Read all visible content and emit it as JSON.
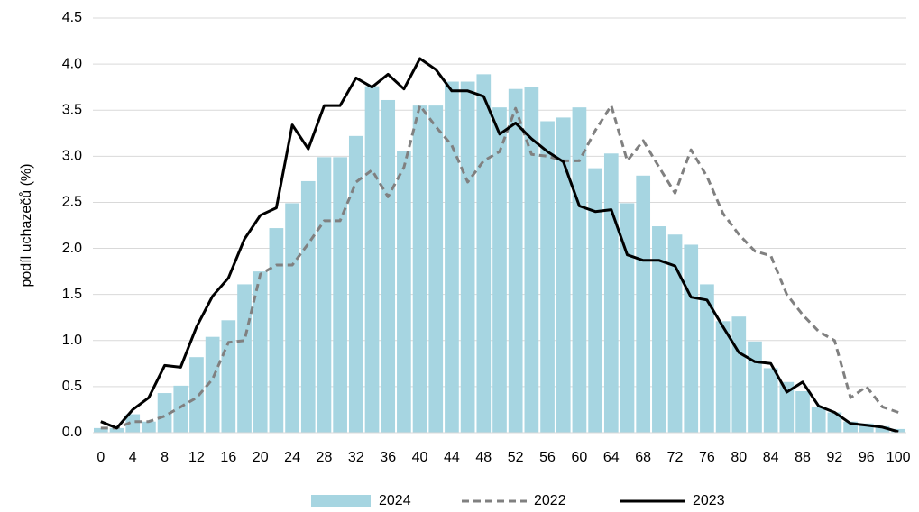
{
  "chart_data": {
    "type": "bar",
    "y_label": "podíl uchazečů (%)",
    "x": [
      0,
      2,
      4,
      6,
      8,
      10,
      12,
      14,
      16,
      18,
      20,
      22,
      24,
      26,
      28,
      30,
      32,
      34,
      36,
      38,
      40,
      42,
      44,
      46,
      48,
      50,
      52,
      54,
      56,
      58,
      60,
      62,
      64,
      66,
      68,
      70,
      72,
      74,
      76,
      78,
      80,
      82,
      84,
      86,
      88,
      90,
      92,
      94,
      96,
      98,
      100
    ],
    "series": [
      {
        "name": "2024",
        "type": "bar",
        "color": "#a6d5e1",
        "values": [
          0.05,
          0.05,
          0.2,
          0.12,
          0.43,
          0.51,
          0.82,
          1.04,
          1.22,
          1.61,
          1.75,
          2.22,
          2.49,
          2.73,
          2.99,
          2.99,
          3.22,
          3.76,
          3.61,
          3.06,
          3.55,
          3.55,
          3.81,
          3.81,
          3.89,
          3.53,
          3.73,
          3.75,
          3.38,
          3.42,
          3.53,
          2.87,
          3.03,
          2.49,
          2.79,
          2.24,
          2.15,
          2.04,
          1.61,
          1.21,
          1.26,
          0.99,
          0.7,
          0.55,
          0.45,
          0.28,
          0.22,
          0.12,
          0.1,
          0.07,
          0.04
        ]
      },
      {
        "name": "2022",
        "type": "line",
        "dash": true,
        "color": "#808080",
        "values": [
          0.05,
          0.05,
          0.12,
          0.12,
          0.18,
          0.28,
          0.38,
          0.58,
          0.98,
          1.0,
          1.72,
          1.82,
          1.82,
          2.05,
          2.3,
          2.3,
          2.72,
          2.85,
          2.56,
          2.88,
          3.55,
          3.32,
          3.12,
          2.72,
          2.95,
          3.05,
          3.52,
          3.02,
          3.0,
          2.95,
          2.95,
          3.28,
          3.55,
          2.95,
          3.17,
          2.88,
          2.6,
          3.07,
          2.78,
          2.38,
          2.15,
          1.97,
          1.92,
          1.5,
          1.28,
          1.1,
          1.0,
          0.38,
          0.5,
          0.28,
          0.22
        ]
      },
      {
        "name": "2023",
        "type": "line",
        "dash": false,
        "color": "#000000",
        "values": [
          0.12,
          0.05,
          0.25,
          0.38,
          0.73,
          0.71,
          1.15,
          1.48,
          1.68,
          2.1,
          2.36,
          2.44,
          3.34,
          3.08,
          3.55,
          3.55,
          3.85,
          3.75,
          3.89,
          3.73,
          4.06,
          3.94,
          3.71,
          3.71,
          3.65,
          3.24,
          3.36,
          3.19,
          3.05,
          2.94,
          2.46,
          2.4,
          2.42,
          1.93,
          1.87,
          1.87,
          1.81,
          1.47,
          1.44,
          1.15,
          0.87,
          0.77,
          0.75,
          0.44,
          0.55,
          0.29,
          0.22,
          0.1,
          0.08,
          0.06,
          0.01
        ]
      }
    ],
    "xlim": [
      -1,
      101
    ],
    "xticks": [
      0,
      4,
      8,
      12,
      16,
      20,
      24,
      28,
      32,
      36,
      40,
      44,
      48,
      52,
      56,
      60,
      64,
      68,
      72,
      76,
      80,
      84,
      88,
      92,
      96,
      100
    ],
    "ylim": [
      0,
      4.5
    ],
    "yticks": [
      {
        "value": 0,
        "label": "0.0"
      },
      0.5,
      {
        "value": 1,
        "label": "1.0"
      },
      1.5,
      {
        "value": 2,
        "label": "2.0"
      },
      2.5,
      {
        "value": 3,
        "label": "3.0"
      },
      3.5,
      {
        "value": 4,
        "label": "4.0"
      },
      4.5
    ],
    "grid": true,
    "legend": "bottom"
  }
}
